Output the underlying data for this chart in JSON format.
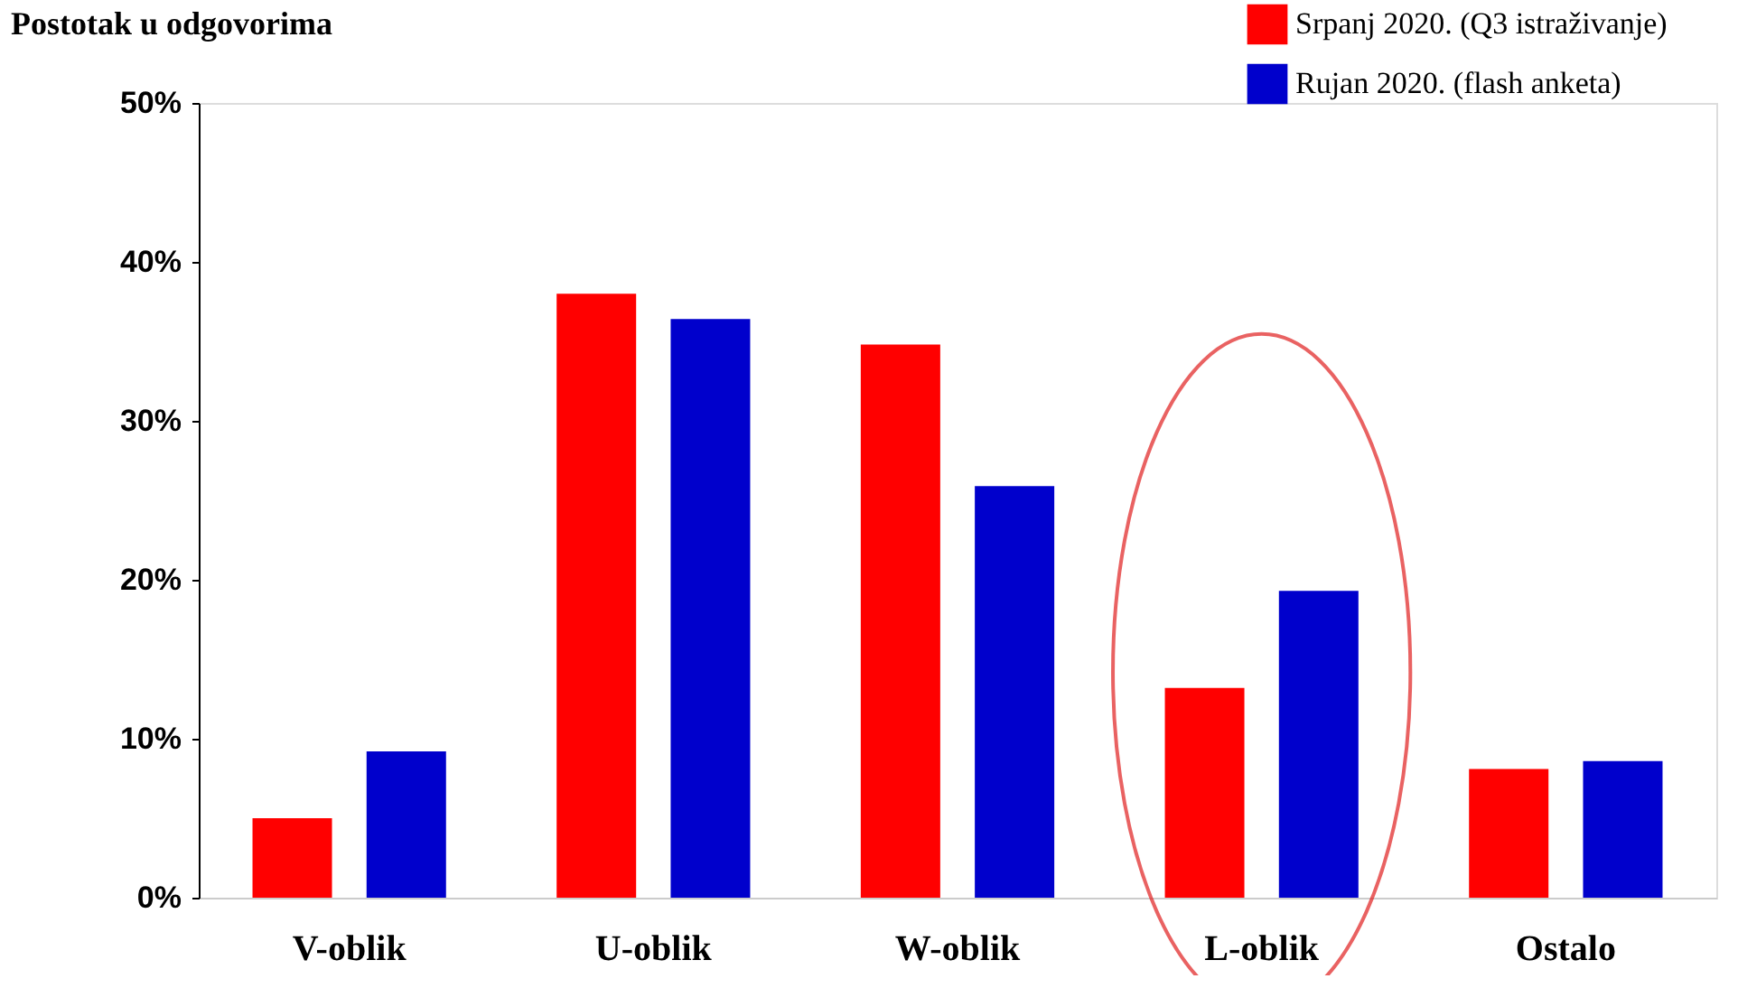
{
  "chart_data": {
    "type": "bar",
    "title": "Postotak u odgovorima",
    "categories": [
      "V-oblik",
      "U-oblik",
      "W-oblik",
      "L-oblik",
      "Ostalo"
    ],
    "series": [
      {
        "name": "Srpanj 2020. (Q3 istraživanje)",
        "color": "#ff0000",
        "values": [
          5.0,
          38.0,
          34.8,
          13.2,
          8.1
        ]
      },
      {
        "name": "Rujan 2020. (flash anketa)",
        "color": "#0000cc",
        "values": [
          9.2,
          36.4,
          25.9,
          19.3,
          8.6
        ]
      }
    ],
    "ylim": [
      0,
      50
    ],
    "yticks": [
      {
        "value": 0,
        "label": "0%"
      },
      {
        "value": 10,
        "label": "10%"
      },
      {
        "value": 20,
        "label": "20%"
      },
      {
        "value": 30,
        "label": "30%"
      },
      {
        "value": 40,
        "label": "40%"
      },
      {
        "value": 50,
        "label": "50%"
      }
    ],
    "grid": false,
    "legend": "top right"
  }
}
